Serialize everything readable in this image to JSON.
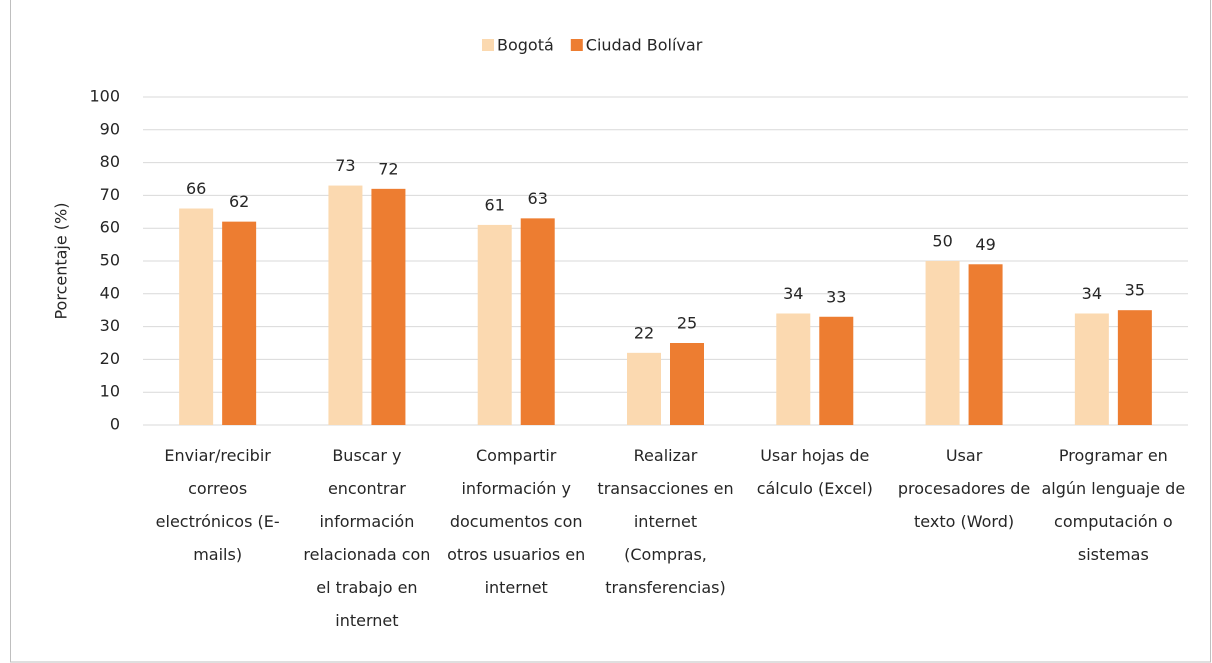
{
  "chart_data": {
    "type": "bar",
    "categories": [
      "Enviar/recibir correos electrónicos (E-mails)",
      "Buscar y encontrar información relacionada con el trabajo en internet",
      "Compartir información y documentos con otros usuarios en internet",
      "Realizar transacciones en internet (Compras, transferencias)",
      "Usar hojas de cálculo (Excel)",
      "Usar procesadores de texto (Word)",
      "Programar en algún lenguaje de computación o sistemas"
    ],
    "series": [
      {
        "name": "Bogotá",
        "color": "#fbd9b0",
        "values": [
          66,
          73,
          61,
          22,
          34,
          50,
          34
        ]
      },
      {
        "name": "Ciudad Bolívar",
        "color": "#ed7d31",
        "values": [
          62,
          72,
          63,
          25,
          33,
          49,
          35
        ]
      }
    ],
    "y_label": "Porcentaje (%)",
    "ylim": [
      0,
      100
    ],
    "yticks": [
      0,
      10,
      20,
      30,
      40,
      50,
      60,
      70,
      80,
      90,
      100
    ],
    "grid": true,
    "legend": "top"
  }
}
